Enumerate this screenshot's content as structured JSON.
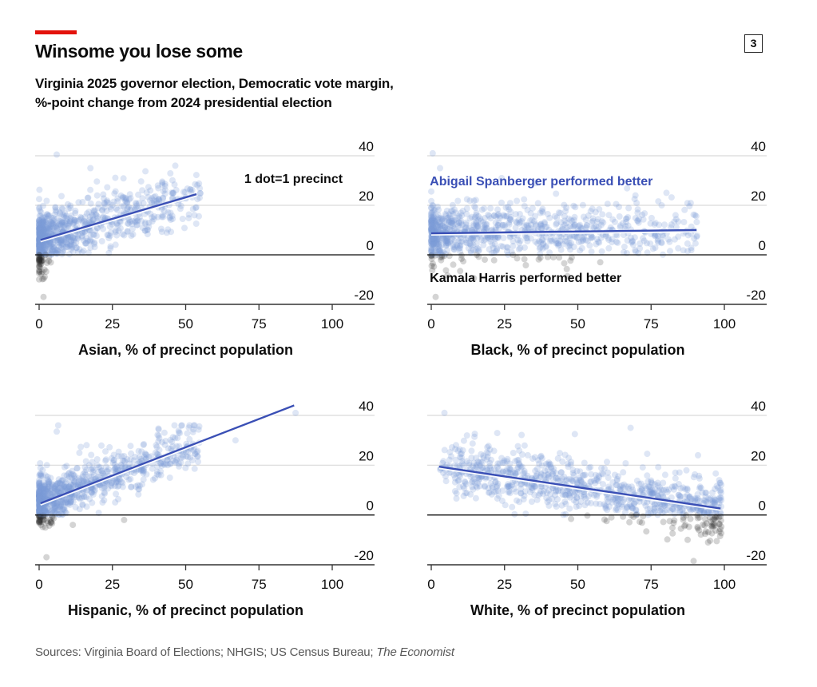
{
  "header": {
    "title": "Winsome you lose some",
    "subtitle_line1": "Virginia 2025 governor election, Democratic vote margin,",
    "subtitle_line2": "%-point change from 2024 presidential election",
    "chart_number": "3"
  },
  "footer": {
    "source_prefix": "Sources: Virginia Board of Elections; NHGIS; US Census Bureau; ",
    "source_italic": "The Economist"
  },
  "colors": {
    "accent_red": "#e3120b",
    "dot_positive": "#7b9bd8",
    "dot_negative": "#2a2a2a",
    "trend_line": "#3a4fb5",
    "spanberger_label": "#3a4fb5",
    "harris_label": "#0c0c0c",
    "gridline": "#d9d9d9",
    "zero_line": "#0c0c0c"
  },
  "chart_data": [
    {
      "type": "scatter",
      "panel": "top-left",
      "xlabel": "Asian, % of precinct population",
      "ylabel": "",
      "xlim": [
        0,
        100
      ],
      "ylim": [
        -20,
        40
      ],
      "xticks": [
        "0",
        "25",
        "50",
        "75",
        "100"
      ],
      "yticks": [
        "40",
        "20",
        "0",
        "-20"
      ],
      "grid": true,
      "annotations": [
        {
          "text": "1 dot=1 precinct",
          "x": 70,
          "y": 29,
          "color": "#0c0c0c"
        }
      ],
      "trend_line": {
        "x": [
          0.5,
          53.7
        ],
        "y": [
          6,
          24.5
        ]
      },
      "distribution": {
        "count": 900,
        "x_max": 55,
        "x_skew": 2.8,
        "spread": 6.5,
        "neg_cluster_x_max": 4
      },
      "notable_points": [
        [
          6,
          40.5
        ],
        [
          17.5,
          35
        ],
        [
          1.5,
          -17
        ],
        [
          53,
          16
        ]
      ]
    },
    {
      "type": "scatter",
      "panel": "top-right",
      "xlabel": "Black, % of precinct population",
      "ylabel": "",
      "xlim": [
        0,
        100
      ],
      "ylim": [
        -20,
        40
      ],
      "xticks": [
        "0",
        "25",
        "50",
        "75",
        "100"
      ],
      "yticks": [
        "40",
        "20",
        "0",
        "-20"
      ],
      "grid": true,
      "annotations": [
        {
          "text": "Abigail Spanberger performed better",
          "x": -0.5,
          "y": 28,
          "color": "#3a4fb5"
        },
        {
          "text": "Kamala Harris performed better",
          "x": -0.5,
          "y": -11,
          "color": "#0c0c0c"
        }
      ],
      "trend_line": {
        "x": [
          0,
          90.5
        ],
        "y": [
          8.7,
          10
        ]
      },
      "distribution": {
        "count": 900,
        "x_max": 91,
        "x_skew": 2.2,
        "spread": 6.5,
        "neg_cluster_x_max": 60
      },
      "notable_points": [
        [
          0.5,
          41
        ],
        [
          3,
          35
        ],
        [
          24,
          31
        ],
        [
          1.5,
          -17
        ],
        [
          90,
          16
        ]
      ]
    },
    {
      "type": "scatter",
      "panel": "bottom-left",
      "xlabel": "Hispanic, % of precinct population",
      "ylabel": "",
      "xlim": [
        0,
        100
      ],
      "ylim": [
        -20,
        40
      ],
      "xticks": [
        "0",
        "25",
        "50",
        "75",
        "100"
      ],
      "yticks": [
        "40",
        "20",
        "0",
        "-20"
      ],
      "grid": true,
      "annotations": [],
      "trend_line": {
        "x": [
          0.5,
          87
        ],
        "y": [
          4.7,
          44
        ]
      },
      "distribution": {
        "count": 900,
        "x_max": 55,
        "x_skew": 2.6,
        "spread": 5.5,
        "neg_cluster_x_max": 5
      },
      "notable_points": [
        [
          6.5,
          36
        ],
        [
          6,
          33.5
        ],
        [
          87.5,
          41
        ],
        [
          67,
          30
        ],
        [
          2.5,
          -17
        ],
        [
          29,
          -2
        ],
        [
          11.5,
          -4
        ]
      ]
    },
    {
      "type": "scatter",
      "panel": "bottom-right",
      "xlabel": "White, % of precinct population",
      "ylabel": "",
      "xlim": [
        0,
        100
      ],
      "ylim": [
        -20,
        40
      ],
      "xticks": [
        "0",
        "25",
        "50",
        "75",
        "100"
      ],
      "yticks": [
        "40",
        "20",
        "0",
        "-20"
      ],
      "grid": true,
      "annotations": [],
      "trend_line": {
        "x": [
          2.7,
          98.7
        ],
        "y": [
          19.4,
          2.6
        ]
      },
      "distribution": {
        "count": 900,
        "x_min": 3,
        "x_max": 99,
        "x_skew": 0.6,
        "spread": 6.5,
        "neg_cluster_x_max": 99
      },
      "notable_points": [
        [
          4.5,
          41
        ],
        [
          68,
          35
        ],
        [
          49,
          32.5
        ],
        [
          89.5,
          -18.5
        ],
        [
          91,
          24
        ]
      ]
    }
  ]
}
